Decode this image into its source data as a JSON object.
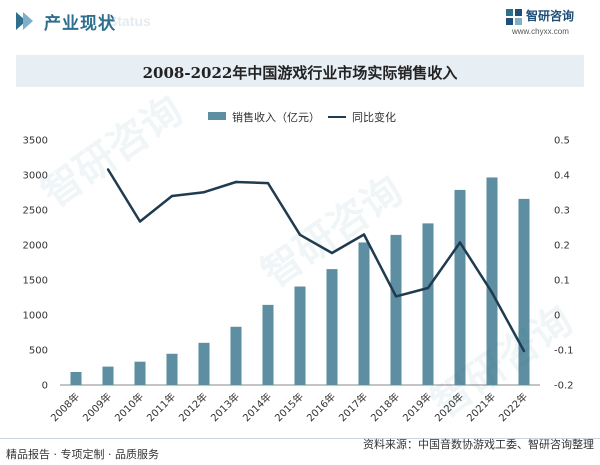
{
  "header": {
    "title": "产业现状",
    "subtitle": "Status"
  },
  "logo": {
    "name": "智研咨询",
    "url": "www.chyxx.com"
  },
  "chart_data": {
    "type": "bar",
    "title": "2008-2022年中国游戏行业市场实际销售收入",
    "categories": [
      "2008年",
      "2009年",
      "2010年",
      "2011年",
      "2012年",
      "2013年",
      "2014年",
      "2015年",
      "2016年",
      "2017年",
      "2018年",
      "2019年",
      "2020年",
      "2021年",
      "2022年"
    ],
    "series": [
      {
        "name": "销售收入（亿元）",
        "type": "bar",
        "axis": "left",
        "color": "#5e8ea1",
        "values": [
          185.6,
          262.8,
          333.0,
          446.1,
          602.8,
          831.7,
          1144.8,
          1407.0,
          1655.7,
          2036.1,
          2144.4,
          2308.8,
          2786.9,
          2965.1,
          2658.8
        ]
      },
      {
        "name": "同比变化",
        "type": "line",
        "axis": "right",
        "color": "#1f3b50",
        "values": [
          null,
          0.416,
          0.267,
          0.34,
          0.351,
          0.38,
          0.377,
          0.229,
          0.177,
          0.23,
          0.053,
          0.077,
          0.207,
          0.064,
          -0.103
        ]
      }
    ],
    "y_left": {
      "min": 0,
      "max": 3500,
      "ticks": [
        0,
        500,
        1000,
        1500,
        2000,
        2500,
        3000,
        3500
      ]
    },
    "y_right": {
      "min": -0.2,
      "max": 0.5,
      "ticks": [
        -0.2,
        -0.1,
        0,
        0.1,
        0.2,
        0.3,
        0.4,
        0.5
      ]
    },
    "grid": false,
    "legend_position": "top"
  },
  "footer": {
    "left": "精品报告 · 专项定制 · 品质服务",
    "right": "资料来源：中国音数协游戏工委、智研咨询整理"
  },
  "watermark": "智研咨询"
}
